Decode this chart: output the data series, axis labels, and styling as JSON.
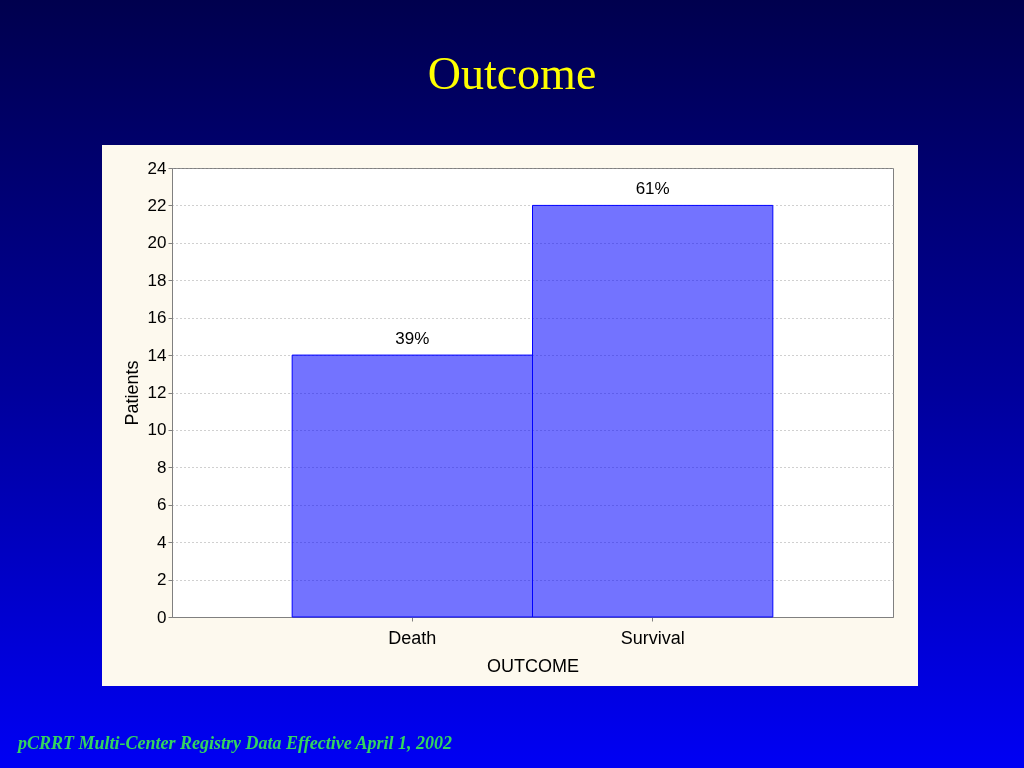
{
  "chart_data": {
    "type": "bar",
    "title": "Outcome",
    "xlabel": "OUTCOME",
    "ylabel": "Patients",
    "categories": [
      "Death",
      "Survival"
    ],
    "values": [
      14,
      22
    ],
    "color": "#0000ff",
    "ylim": [
      0,
      24
    ],
    "yticks": [
      0,
      2,
      4,
      6,
      8,
      10,
      12,
      14,
      16,
      18,
      20,
      22,
      24
    ],
    "grid": "y",
    "annotations": [
      {
        "text": "39%",
        "x": "Death",
        "y": 14
      },
      {
        "text": "61%",
        "x": "Survival",
        "y": 22
      },
      "pCRRT Multi-Center Registry Data Effective April 1, 2002"
    ]
  }
}
